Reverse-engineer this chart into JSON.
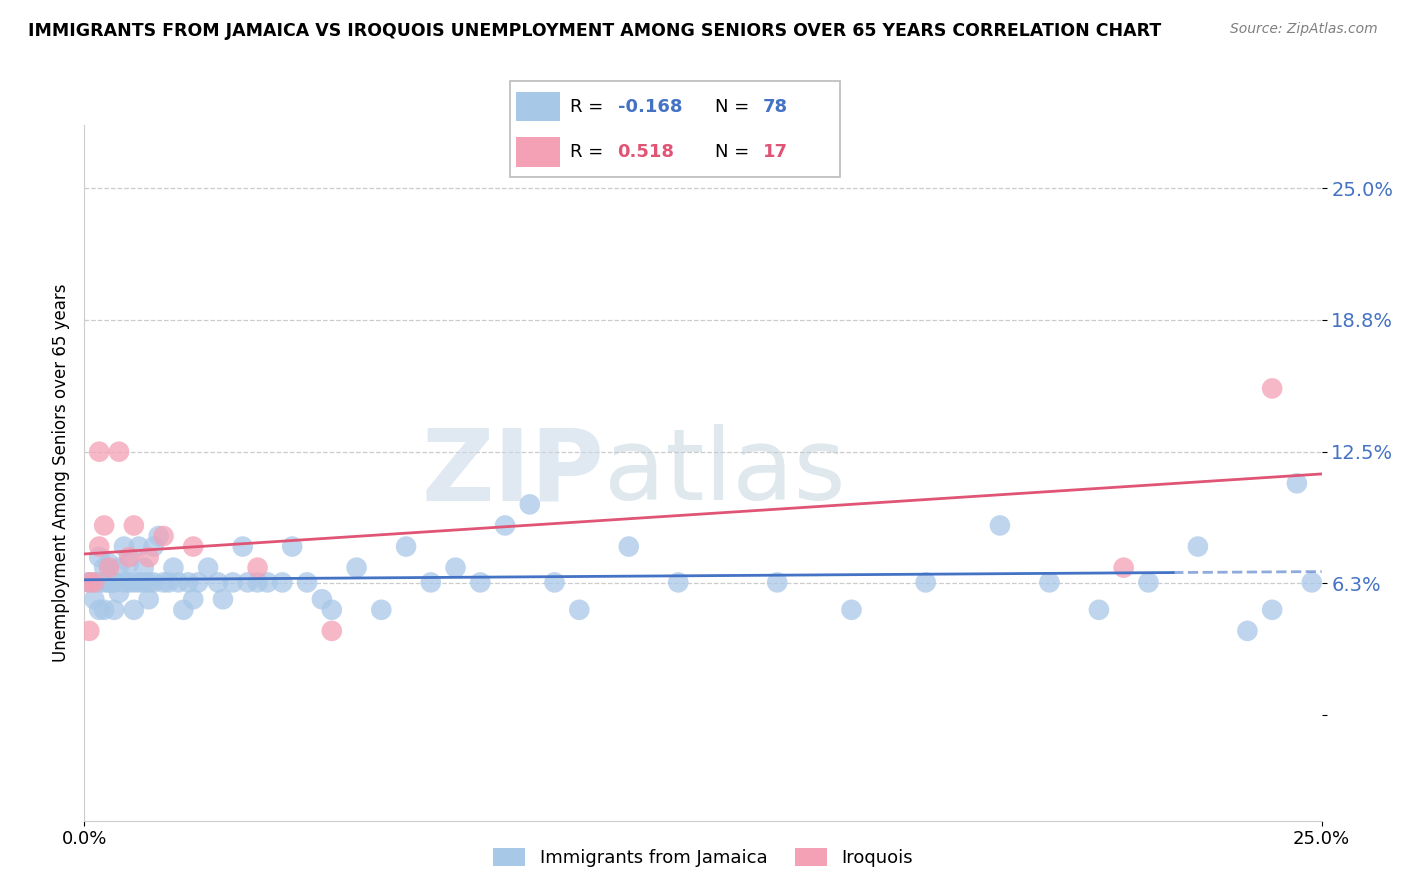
{
  "title": "IMMIGRANTS FROM JAMAICA VS IROQUOIS UNEMPLOYMENT AMONG SENIORS OVER 65 YEARS CORRELATION CHART",
  "source": "Source: ZipAtlas.com",
  "ylabel": "Unemployment Among Seniors over 65 years",
  "xlim": [
    0.0,
    0.25
  ],
  "ylim": [
    -0.05,
    0.28
  ],
  "yticks": [
    0.0,
    0.0625,
    0.125,
    0.1875,
    0.25
  ],
  "ytick_labels": [
    "",
    "6.3%",
    "12.5%",
    "18.8%",
    "25.0%"
  ],
  "xtick_vals": [
    0.0,
    0.25
  ],
  "xtick_labels": [
    "0.0%",
    "25.0%"
  ],
  "legend_R_blue": "-0.168",
  "legend_N_blue": "78",
  "legend_R_pink": "0.518",
  "legend_N_pink": "17",
  "legend_label_blue": "Immigrants from Jamaica",
  "legend_label_pink": "Iroquois",
  "blue_color": "#a8c8e8",
  "pink_color": "#f4a0b5",
  "trend_blue_color": "#4472c4",
  "trend_pink_color": "#e05575",
  "watermark_zip": "ZIP",
  "watermark_atlas": "atlas",
  "background_color": "#ffffff",
  "blue_x": [
    0.001,
    0.001,
    0.002,
    0.002,
    0.003,
    0.003,
    0.003,
    0.004,
    0.004,
    0.004,
    0.005,
    0.005,
    0.005,
    0.006,
    0.006,
    0.006,
    0.007,
    0.007,
    0.008,
    0.008,
    0.009,
    0.009,
    0.01,
    0.01,
    0.011,
    0.011,
    0.012,
    0.012,
    0.013,
    0.013,
    0.014,
    0.014,
    0.015,
    0.016,
    0.017,
    0.018,
    0.019,
    0.02,
    0.021,
    0.022,
    0.023,
    0.025,
    0.027,
    0.028,
    0.03,
    0.032,
    0.033,
    0.035,
    0.037,
    0.04,
    0.042,
    0.045,
    0.048,
    0.05,
    0.055,
    0.06,
    0.065,
    0.07,
    0.075,
    0.08,
    0.085,
    0.09,
    0.095,
    0.1,
    0.11,
    0.12,
    0.14,
    0.155,
    0.17,
    0.185,
    0.195,
    0.205,
    0.215,
    0.225,
    0.235,
    0.24,
    0.245,
    0.248
  ],
  "blue_y": [
    0.063,
    0.063,
    0.055,
    0.063,
    0.063,
    0.075,
    0.05,
    0.063,
    0.07,
    0.05,
    0.063,
    0.063,
    0.072,
    0.063,
    0.05,
    0.063,
    0.07,
    0.058,
    0.08,
    0.063,
    0.063,
    0.072,
    0.063,
    0.05,
    0.08,
    0.063,
    0.07,
    0.063,
    0.063,
    0.055,
    0.08,
    0.063,
    0.085,
    0.063,
    0.063,
    0.07,
    0.063,
    0.05,
    0.063,
    0.055,
    0.063,
    0.07,
    0.063,
    0.055,
    0.063,
    0.08,
    0.063,
    0.063,
    0.063,
    0.063,
    0.08,
    0.063,
    0.055,
    0.05,
    0.07,
    0.05,
    0.08,
    0.063,
    0.07,
    0.063,
    0.09,
    0.1,
    0.063,
    0.05,
    0.08,
    0.063,
    0.063,
    0.05,
    0.063,
    0.09,
    0.063,
    0.05,
    0.063,
    0.08,
    0.04,
    0.05,
    0.11,
    0.063
  ],
  "pink_x": [
    0.001,
    0.001,
    0.002,
    0.003,
    0.003,
    0.004,
    0.005,
    0.007,
    0.009,
    0.01,
    0.013,
    0.016,
    0.022,
    0.035,
    0.05,
    0.21,
    0.24
  ],
  "pink_y": [
    0.04,
    0.063,
    0.063,
    0.08,
    0.125,
    0.09,
    0.07,
    0.125,
    0.075,
    0.09,
    0.075,
    0.085,
    0.08,
    0.07,
    0.04,
    0.07,
    0.155
  ],
  "trend_blue_x0": 0.0,
  "trend_blue_x1": 0.25,
  "trend_pink_x0": 0.0,
  "trend_pink_x1": 0.25
}
